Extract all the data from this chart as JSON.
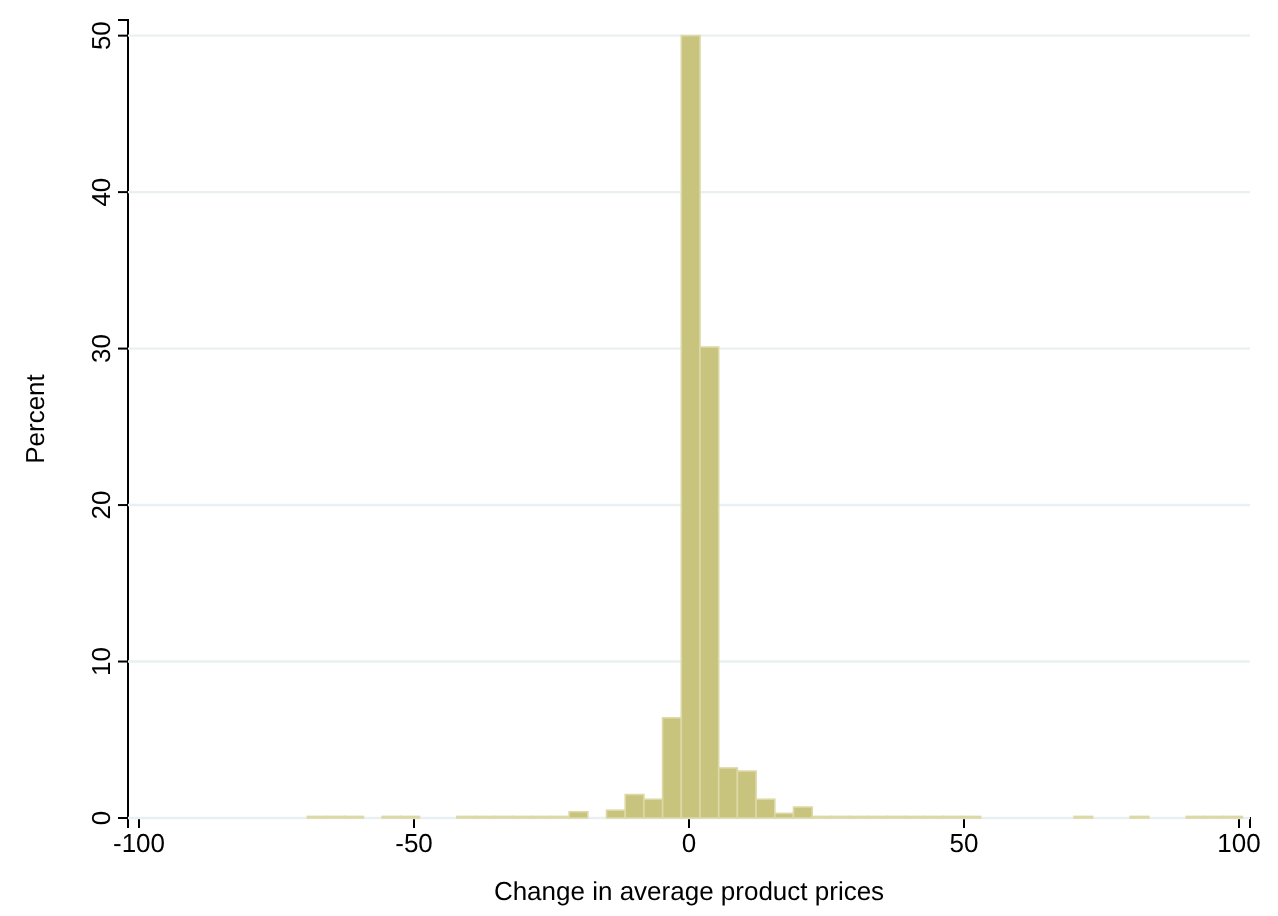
{
  "chart_data": {
    "type": "histogram",
    "xlabel": "Change in average product prices",
    "ylabel": "Percent",
    "color": "#c8c47e",
    "bins": [
      -69.4,
      -66,
      -62.6,
      -59.2,
      -55.8,
      -52.4,
      -49,
      -45.6,
      -42.2,
      -38.8,
      -35.4,
      -32,
      -28.6,
      -25.2,
      -21.8,
      -18.4,
      -15,
      -11.6,
      -8.2,
      -4.8,
      -1.4,
      2,
      5.4,
      8.8,
      12.2,
      15.6,
      19,
      22.4,
      25.8,
      29.2,
      32.6,
      36,
      39.4,
      42.8,
      46.2,
      49.6,
      53,
      56.4,
      59.8,
      63.2,
      66.6,
      70,
      73.4,
      76.8,
      80.2,
      83.6,
      87,
      90.4,
      93.8,
      97.2,
      100.6
    ],
    "values": [
      0.1,
      0.1,
      0.1,
      0,
      0.1,
      0.1,
      0,
      0,
      0.1,
      0.1,
      0.1,
      0.1,
      0.1,
      0.1,
      0.4,
      0,
      0.5,
      1.5,
      1.2,
      6.4,
      50,
      30.1,
      3.2,
      3,
      1.2,
      0.3,
      0.7,
      0.1,
      0.1,
      0.1,
      0.1,
      0.1,
      0.1,
      0.1,
      0.1,
      0.1,
      0,
      0,
      0,
      0,
      0,
      0.1,
      0,
      0,
      0.1,
      0,
      0,
      0.1,
      0.1,
      0.1
    ],
    "xlim": [
      -102,
      102
    ],
    "ylim": [
      0,
      51
    ],
    "xticks": [
      -100,
      -50,
      0,
      50,
      100
    ],
    "yticks": [
      0,
      10,
      20,
      30,
      40,
      50
    ],
    "grid": "y"
  }
}
